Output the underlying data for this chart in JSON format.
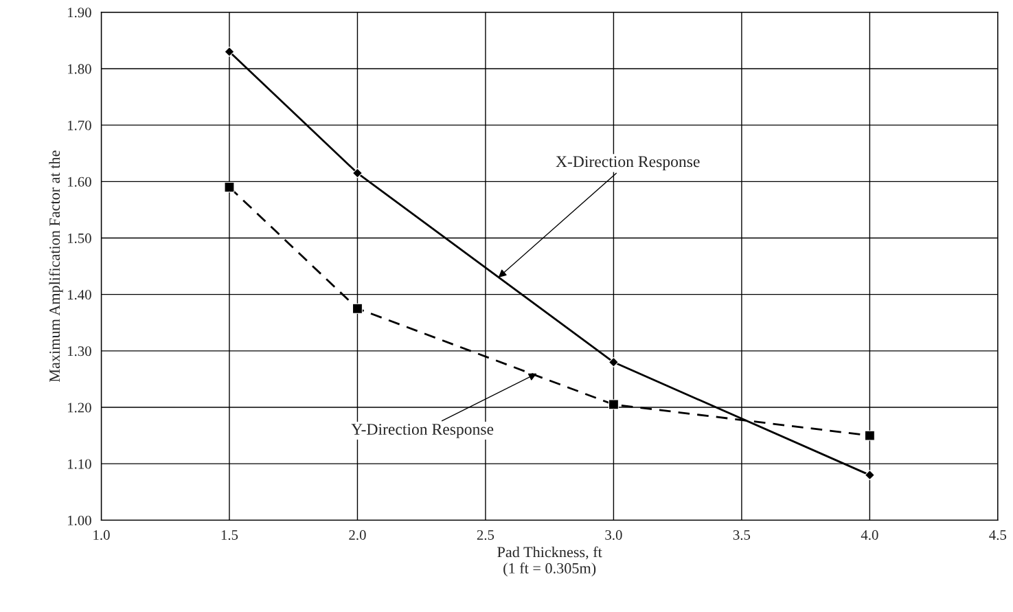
{
  "chart_data": {
    "type": "line",
    "xlabel": "Pad Thickness, ft\n(1 ft = 0.305m)",
    "ylabel": "Maximum Amplification Factor at the",
    "series": [
      {
        "color": "#000000",
        "x": [
          1.5,
          2.0,
          3.0,
          4.0
        ],
        "values": [
          1.83,
          1.615,
          1.28,
          1.08
        ],
        "marker": "diamond",
        "line_style": "solid"
      },
      {
        "color": "#000000",
        "x": [
          1.5,
          2.0,
          3.0,
          4.0
        ],
        "values": [
          1.59,
          1.375,
          1.205,
          1.15
        ],
        "marker": "square",
        "line_style": "dashed"
      }
    ],
    "annotations": [
      {
        "text": "X-Direction Response",
        "x": 2.55,
        "y": 1.43
      },
      {
        "text": "Y-Direction Response",
        "x": 2.7,
        "y": 1.26
      }
    ],
    "xlim": [
      1.0,
      4.5
    ],
    "xticks": [
      {
        "value": 1.0,
        "label": "1.0"
      },
      {
        "value": 1.5,
        "label": "1.5"
      },
      {
        "value": 2.0,
        "label": "2.0"
      },
      {
        "value": 2.5,
        "label": "2.5"
      },
      {
        "value": 3.0,
        "label": "3.0"
      },
      {
        "value": 3.5,
        "label": "3.5"
      },
      {
        "value": 4.0,
        "label": "4.0"
      },
      {
        "value": 4.5,
        "label": "4.5"
      }
    ],
    "ylim": [
      1.0,
      1.9
    ],
    "yticks": [
      {
        "value": 1.0,
        "label": "1.00"
      },
      {
        "value": 1.1,
        "label": "1.10"
      },
      {
        "value": 1.2,
        "label": "1.20"
      },
      {
        "value": 1.3,
        "label": "1.30"
      },
      {
        "value": 1.4,
        "label": "1.40"
      },
      {
        "value": 1.5,
        "label": "1.50"
      },
      {
        "value": 1.6,
        "label": "1.60"
      },
      {
        "value": 1.7,
        "label": "1.70"
      },
      {
        "value": 1.8,
        "label": "1.80"
      },
      {
        "value": 1.9,
        "label": "1.90"
      }
    ],
    "grid": true,
    "legend": false
  }
}
